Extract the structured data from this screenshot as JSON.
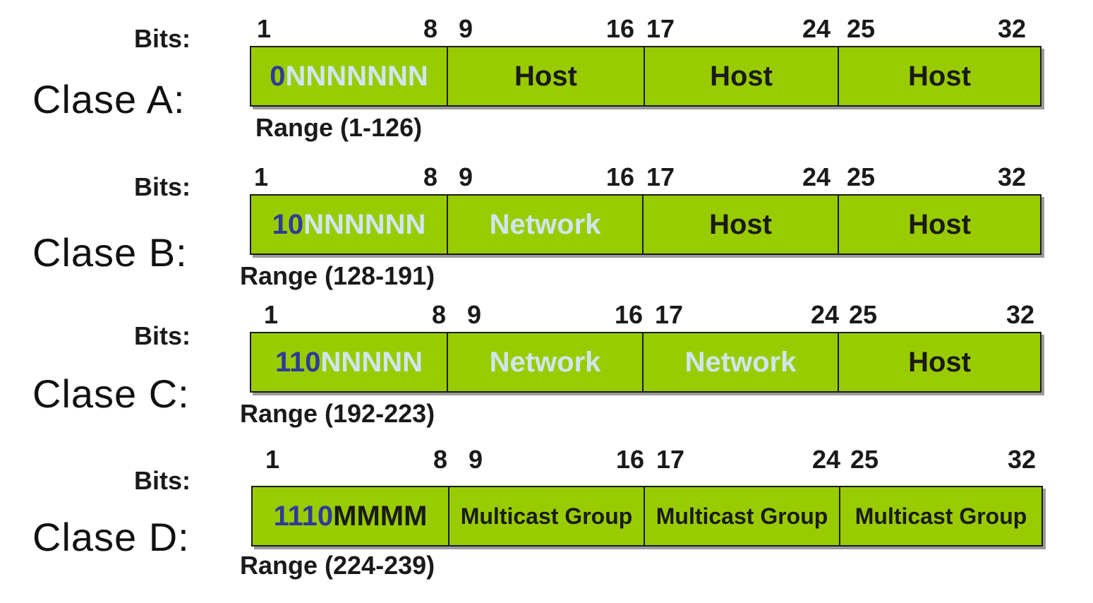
{
  "bits_label": "Bits:",
  "classes": [
    {
      "label": "Clase A:",
      "ticks": [
        "1",
        "8",
        "9",
        "16",
        "17",
        "24",
        "25",
        "32"
      ],
      "first": {
        "prefix": "0",
        "rest": "NNNNNNN"
      },
      "segments": [
        "Host",
        "Host",
        "Host"
      ],
      "range": "Range (1-126)"
    },
    {
      "label": "Clase B:",
      "ticks": [
        "1",
        "8",
        "9",
        "16",
        "17",
        "24",
        "25",
        "32"
      ],
      "first": {
        "prefix": "10",
        "rest": "NNNNNN"
      },
      "segments": [
        "Network",
        "Host",
        "Host"
      ],
      "range": "Range (128-191)"
    },
    {
      "label": "Clase C:",
      "ticks": [
        "1",
        "8",
        "9",
        "16",
        "17",
        "24",
        "25",
        "32"
      ],
      "first": {
        "prefix": "110",
        "rest": "NNNNN"
      },
      "segments": [
        "Network",
        "Network",
        "Host"
      ],
      "range": "Range (192-223)"
    },
    {
      "label": "Clase D:",
      "ticks": [
        "1",
        "8",
        "9",
        "16",
        "17",
        "24",
        "25",
        "32"
      ],
      "first": {
        "prefix": "1110",
        "rest": "MMMM"
      },
      "segments": [
        "Multicast Group",
        "Multicast Group",
        "Multicast Group"
      ],
      "range": "Range (224-239)"
    }
  ],
  "colors": {
    "bar_fill": "#99cc00",
    "prefix_blue": "#2f3a9a",
    "network_text": "#d0e6f2",
    "host_text": "#1a1a1a"
  }
}
